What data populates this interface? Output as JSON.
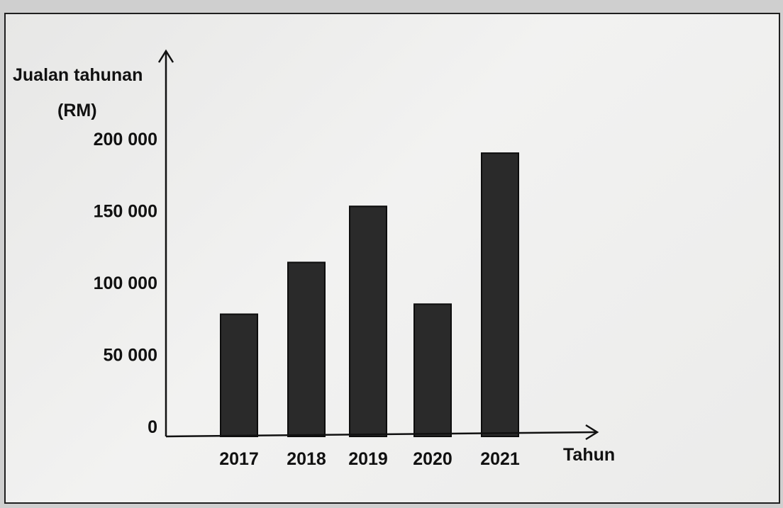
{
  "chart_data": {
    "type": "bar",
    "title": "",
    "ylabel_line1": "Jualan tahunan",
    "ylabel_line2": "(RM)",
    "xlabel": "Tahun",
    "categories": [
      "2017",
      "2018",
      "2019",
      "2020",
      "2021"
    ],
    "values": [
      84000,
      120000,
      159000,
      91000,
      196000
    ],
    "yticks": [
      "0",
      "50 000",
      "100 000",
      "150 000",
      "200 000"
    ],
    "ytick_values": [
      0,
      50000,
      100000,
      150000,
      200000
    ],
    "ylim": [
      0,
      200000
    ],
    "grid": false,
    "bar_color": "#2a2a2a",
    "axis_color": "#111111"
  }
}
